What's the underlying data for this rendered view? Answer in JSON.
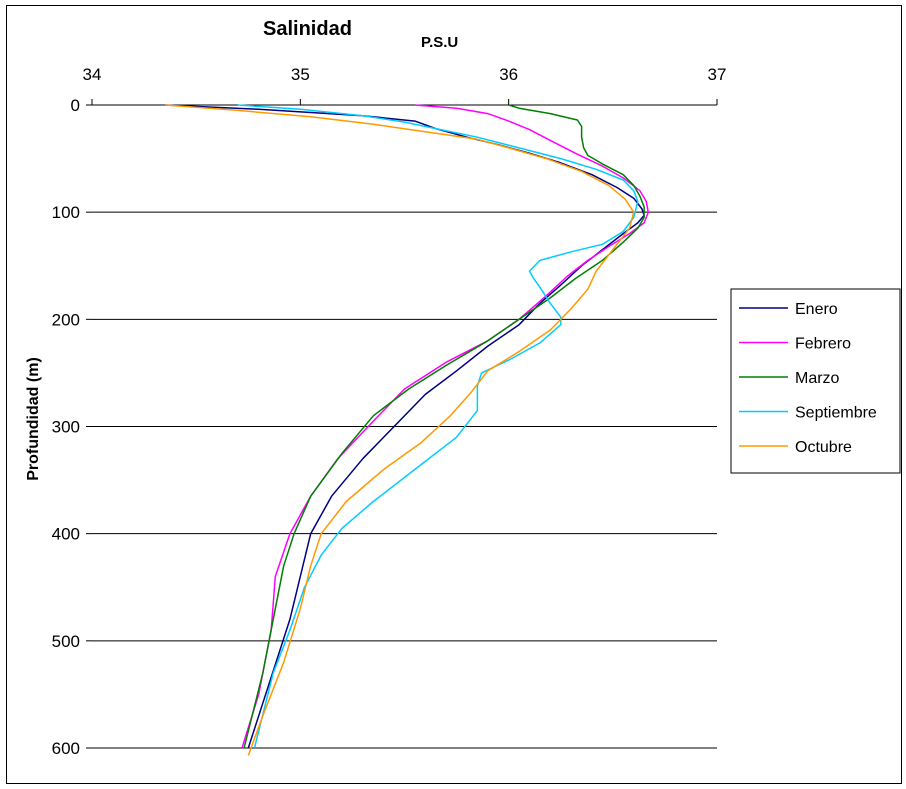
{
  "chart_data": {
    "type": "line",
    "title": "Salinidad",
    "xlabel": "P.S.U",
    "ylabel": "Profundidad (m)",
    "x_axis_position": "top",
    "y_axis_inverted": true,
    "xlim": [
      34,
      37
    ],
    "ylim": [
      0,
      600
    ],
    "xticks": [
      "34",
      "35",
      "36",
      "37"
    ],
    "yticks": [
      "0",
      "100",
      "200",
      "300",
      "400",
      "500",
      "600"
    ],
    "grid": "horizontal",
    "legend_position": "right",
    "series": [
      {
        "name": "Enero",
        "color": "#000080",
        "points": [
          [
            34.35,
            0
          ],
          [
            34.8,
            4
          ],
          [
            35.3,
            10
          ],
          [
            35.55,
            15
          ],
          [
            35.65,
            22
          ],
          [
            35.8,
            30
          ],
          [
            35.95,
            37
          ],
          [
            36.1,
            45
          ],
          [
            36.25,
            54
          ],
          [
            36.4,
            65
          ],
          [
            36.52,
            77
          ],
          [
            36.6,
            87
          ],
          [
            36.64,
            97
          ],
          [
            36.65,
            103
          ],
          [
            36.62,
            110
          ],
          [
            36.55,
            120
          ],
          [
            36.45,
            135
          ],
          [
            36.35,
            150
          ],
          [
            36.25,
            168
          ],
          [
            36.15,
            185
          ],
          [
            36.05,
            205
          ],
          [
            35.9,
            225
          ],
          [
            35.75,
            248
          ],
          [
            35.6,
            270
          ],
          [
            35.45,
            300
          ],
          [
            35.3,
            330
          ],
          [
            35.15,
            365
          ],
          [
            35.05,
            400
          ],
          [
            35.0,
            440
          ],
          [
            34.95,
            480
          ],
          [
            34.85,
            540
          ],
          [
            34.75,
            600
          ]
        ]
      },
      {
        "name": "Febrero",
        "color": "#ff00ff",
        "points": [
          [
            35.55,
            0
          ],
          [
            35.75,
            3
          ],
          [
            35.9,
            8
          ],
          [
            36.0,
            15
          ],
          [
            36.1,
            23
          ],
          [
            36.2,
            33
          ],
          [
            36.32,
            45
          ],
          [
            36.45,
            57
          ],
          [
            36.55,
            68
          ],
          [
            36.63,
            80
          ],
          [
            36.66,
            90
          ],
          [
            36.67,
            100
          ],
          [
            36.65,
            110
          ],
          [
            36.58,
            120
          ],
          [
            36.48,
            132
          ],
          [
            36.38,
            145
          ],
          [
            36.28,
            160
          ],
          [
            36.18,
            178
          ],
          [
            36.05,
            200
          ],
          [
            35.9,
            220
          ],
          [
            35.7,
            240
          ],
          [
            35.5,
            265
          ],
          [
            35.35,
            295
          ],
          [
            35.18,
            330
          ],
          [
            35.05,
            365
          ],
          [
            34.95,
            400
          ],
          [
            34.88,
            440
          ],
          [
            34.86,
            490
          ],
          [
            34.8,
            550
          ],
          [
            34.72,
            600
          ]
        ]
      },
      {
        "name": "Marzo",
        "color": "#008000",
        "points": [
          [
            36.0,
            0
          ],
          [
            36.05,
            3
          ],
          [
            36.2,
            8
          ],
          [
            36.33,
            14
          ],
          [
            36.35,
            20
          ],
          [
            36.35,
            30
          ],
          [
            36.36,
            40
          ],
          [
            36.38,
            47
          ],
          [
            36.45,
            55
          ],
          [
            36.55,
            65
          ],
          [
            36.6,
            75
          ],
          [
            36.63,
            85
          ],
          [
            36.65,
            95
          ],
          [
            36.65,
            105
          ],
          [
            36.62,
            115
          ],
          [
            36.55,
            128
          ],
          [
            36.45,
            145
          ],
          [
            36.32,
            162
          ],
          [
            36.2,
            180
          ],
          [
            36.05,
            200
          ],
          [
            35.9,
            220
          ],
          [
            35.7,
            243
          ],
          [
            35.52,
            265
          ],
          [
            35.35,
            290
          ],
          [
            35.2,
            325
          ],
          [
            35.05,
            365
          ],
          [
            34.97,
            400
          ],
          [
            34.92,
            430
          ],
          [
            34.88,
            470
          ],
          [
            34.82,
            530
          ],
          [
            34.73,
            600
          ]
        ]
      },
      {
        "name": "Septiembre",
        "color": "#00ccff",
        "points": [
          [
            34.7,
            0
          ],
          [
            35.0,
            4
          ],
          [
            35.3,
            10
          ],
          [
            35.5,
            16
          ],
          [
            35.65,
            22
          ],
          [
            35.85,
            30
          ],
          [
            36.05,
            40
          ],
          [
            36.25,
            50
          ],
          [
            36.42,
            60
          ],
          [
            36.55,
            70
          ],
          [
            36.6,
            80
          ],
          [
            36.62,
            90
          ],
          [
            36.6,
            105
          ],
          [
            36.55,
            118
          ],
          [
            36.45,
            130
          ],
          [
            36.3,
            137
          ],
          [
            36.15,
            145
          ],
          [
            36.1,
            155
          ],
          [
            36.12,
            162
          ],
          [
            36.15,
            170
          ],
          [
            36.2,
            185
          ],
          [
            36.25,
            198
          ],
          [
            36.25,
            205
          ],
          [
            36.15,
            222
          ],
          [
            36.0,
            238
          ],
          [
            35.87,
            250
          ],
          [
            35.85,
            262
          ],
          [
            35.85,
            285
          ],
          [
            35.75,
            310
          ],
          [
            35.55,
            340
          ],
          [
            35.35,
            370
          ],
          [
            35.2,
            395
          ],
          [
            35.1,
            420
          ],
          [
            35.02,
            450
          ],
          [
            34.95,
            490
          ],
          [
            34.87,
            530
          ],
          [
            34.78,
            600
          ]
        ]
      },
      {
        "name": "Octubre",
        "color": "#ff9900",
        "points": [
          [
            34.35,
            0
          ],
          [
            34.7,
            5
          ],
          [
            35.05,
            11
          ],
          [
            35.35,
            18
          ],
          [
            35.6,
            25
          ],
          [
            35.85,
            32
          ],
          [
            36.0,
            40
          ],
          [
            36.18,
            50
          ],
          [
            36.35,
            62
          ],
          [
            36.48,
            75
          ],
          [
            36.56,
            88
          ],
          [
            36.6,
            100
          ],
          [
            36.58,
            115
          ],
          [
            36.5,
            135
          ],
          [
            36.42,
            155
          ],
          [
            36.38,
            172
          ],
          [
            36.3,
            190
          ],
          [
            36.2,
            210
          ],
          [
            36.05,
            230
          ],
          [
            35.9,
            248
          ],
          [
            35.82,
            268
          ],
          [
            35.72,
            290
          ],
          [
            35.58,
            315
          ],
          [
            35.4,
            340
          ],
          [
            35.22,
            370
          ],
          [
            35.1,
            400
          ],
          [
            35.05,
            430
          ],
          [
            35.0,
            470
          ],
          [
            34.92,
            520
          ],
          [
            34.82,
            570
          ],
          [
            34.75,
            607
          ]
        ]
      }
    ]
  }
}
